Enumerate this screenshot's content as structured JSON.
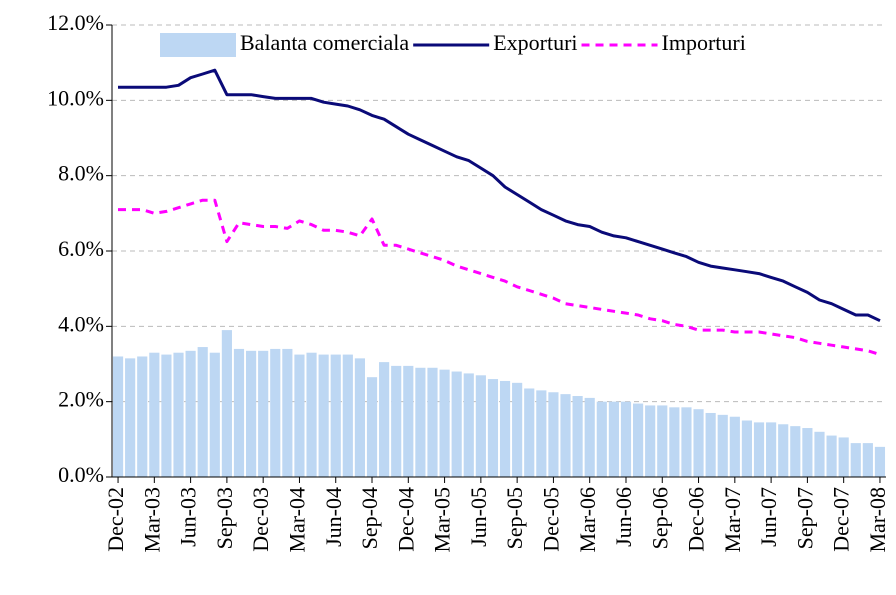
{
  "chart_data": {
    "type": "bar-line",
    "categories": [
      "Dec-02",
      null,
      null,
      "Mar-03",
      null,
      null,
      "Jun-03",
      null,
      null,
      "Sep-03",
      null,
      null,
      "Dec-03",
      null,
      null,
      "Mar-04",
      null,
      null,
      "Jun-04",
      null,
      null,
      "Sep-04",
      null,
      null,
      "Dec-04",
      null,
      null,
      "Mar-05",
      null,
      null,
      "Jun-05",
      null,
      null,
      "Sep-05",
      null,
      null,
      "Dec-05",
      null,
      null,
      "Mar-06",
      null,
      null,
      "Jun-06",
      null,
      null,
      "Sep-06",
      null,
      null,
      "Dec-06",
      null,
      null,
      "Mar-07",
      null,
      null,
      "Jun-07",
      null,
      null,
      "Sep-07",
      null,
      null,
      "Dec-07",
      null,
      null,
      "Mar-08"
    ],
    "series": [
      {
        "name": "Balanta comerciala",
        "type": "bar",
        "color": "#bdd7f3",
        "values": [
          3.2,
          3.15,
          3.2,
          3.3,
          3.25,
          3.3,
          3.35,
          3.45,
          3.3,
          3.9,
          3.4,
          3.35,
          3.35,
          3.4,
          3.4,
          3.25,
          3.3,
          3.25,
          3.25,
          3.25,
          3.15,
          2.65,
          3.05,
          2.95,
          2.95,
          2.9,
          2.9,
          2.85,
          2.8,
          2.75,
          2.7,
          2.6,
          2.55,
          2.5,
          2.35,
          2.3,
          2.25,
          2.2,
          2.15,
          2.1,
          2.0,
          2.0,
          2.0,
          1.95,
          1.9,
          1.9,
          1.85,
          1.85,
          1.8,
          1.7,
          1.65,
          1.6,
          1.5,
          1.45,
          1.45,
          1.4,
          1.35,
          1.3,
          1.2,
          1.1,
          1.05,
          0.9,
          0.9,
          0.8
        ]
      },
      {
        "name": "Exporturi",
        "type": "line",
        "dashed": false,
        "color": "#0a0a78",
        "values": [
          10.35,
          10.35,
          10.35,
          10.35,
          10.35,
          10.4,
          10.6,
          10.7,
          10.8,
          10.15,
          10.15,
          10.15,
          10.1,
          10.05,
          10.05,
          10.05,
          10.05,
          9.95,
          9.9,
          9.85,
          9.75,
          9.6,
          9.5,
          9.3,
          9.1,
          8.95,
          8.8,
          8.65,
          8.5,
          8.4,
          8.2,
          8.0,
          7.7,
          7.5,
          7.3,
          7.1,
          6.95,
          6.8,
          6.7,
          6.65,
          6.5,
          6.4,
          6.35,
          6.25,
          6.15,
          6.05,
          5.95,
          5.85,
          5.7,
          5.6,
          5.55,
          5.5,
          5.45,
          5.4,
          5.3,
          5.2,
          5.05,
          4.9,
          4.7,
          4.6,
          4.45,
          4.3,
          4.3,
          4.15
        ]
      },
      {
        "name": "Importuri",
        "type": "line",
        "dashed": true,
        "color": "#ff00ff",
        "values": [
          7.1,
          7.1,
          7.1,
          7.0,
          7.05,
          7.15,
          7.25,
          7.35,
          7.35,
          6.25,
          6.75,
          6.7,
          6.65,
          6.65,
          6.6,
          6.8,
          6.7,
          6.55,
          6.55,
          6.5,
          6.4,
          6.85,
          6.15,
          6.15,
          6.05,
          5.95,
          5.85,
          5.75,
          5.6,
          5.5,
          5.4,
          5.3,
          5.2,
          5.05,
          4.95,
          4.85,
          4.75,
          4.6,
          4.55,
          4.5,
          4.45,
          4.4,
          4.35,
          4.3,
          4.2,
          4.15,
          4.05,
          4.0,
          3.9,
          3.9,
          3.9,
          3.85,
          3.85,
          3.85,
          3.8,
          3.75,
          3.7,
          3.6,
          3.55,
          3.5,
          3.45,
          3.4,
          3.35,
          3.25
        ]
      }
    ],
    "ylim": [
      0,
      12
    ],
    "yticks": [
      {
        "value": 0,
        "label": "0.0%"
      },
      {
        "value": 2,
        "label": "2.0%"
      },
      {
        "value": 4,
        "label": "4.0%"
      },
      {
        "value": 6,
        "label": "6.0%"
      },
      {
        "value": 8,
        "label": "8.0%"
      },
      {
        "value": 10,
        "label": "10.0%"
      },
      {
        "value": 12,
        "label": "12.0%"
      }
    ],
    "grid": true,
    "legend": "top"
  }
}
